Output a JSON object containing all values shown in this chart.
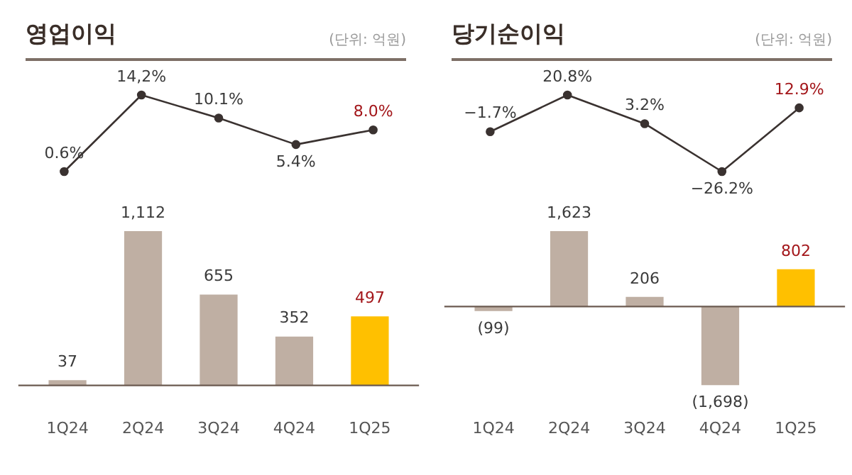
{
  "chart_data": [
    {
      "type": "line",
      "title": "영업이익",
      "subtitle": "(단위: 억원)",
      "categories": [
        null,
        null,
        null,
        null,
        null
      ],
      "legend": false,
      "grid": false,
      "tick_labels": false,
      "color": "#3a3230",
      "marker": "circle",
      "values": [
        0.6,
        14.2,
        10.1,
        5.4,
        8.0
      ],
      "value_labels": [
        "0.6%",
        "14,2%",
        "10.1%",
        "5.4%",
        "8.0%"
      ]
    },
    {
      "type": "bar",
      "categories": [
        "1Q24",
        "2Q24",
        "3Q24",
        "4Q24",
        "1Q25"
      ],
      "legend": false,
      "grid": false,
      "tick_labels": "x",
      "values": [
        37,
        1112,
        655,
        352,
        497
      ],
      "colors": [
        "#bfafa3",
        "#bfafa3",
        "#bfafa3",
        "#bfafa3",
        "#ffc000"
      ],
      "value_labels": [
        "37",
        "1,112",
        "655",
        "352",
        "497"
      ]
    },
    {
      "type": "line",
      "title": "당기순이익",
      "subtitle": "(단위: 억원)",
      "categories": [
        null,
        null,
        null,
        null,
        null
      ],
      "legend": false,
      "grid": false,
      "tick_labels": false,
      "color": "#3a3230",
      "marker": "circle",
      "values": [
        -1.7,
        20.8,
        3.2,
        -26.2,
        12.9
      ],
      "value_labels": [
        "−1.7%",
        "20.8%",
        "3.2%",
        "−26.2%",
        "12.9%"
      ]
    },
    {
      "type": "bar",
      "categories": [
        "1Q24",
        "2Q24",
        "3Q24",
        "4Q24",
        "1Q25"
      ],
      "legend": false,
      "grid": false,
      "tick_labels": "x",
      "values": [
        -99,
        1623,
        206,
        -1698,
        802
      ],
      "colors": [
        "#bfafa3",
        "#bfafa3",
        "#bfafa3",
        "#bfafa3",
        "#ffc000"
      ],
      "value_labels": [
        "(99)",
        "1,623",
        "206",
        "(1,698)",
        "802"
      ]
    }
  ]
}
